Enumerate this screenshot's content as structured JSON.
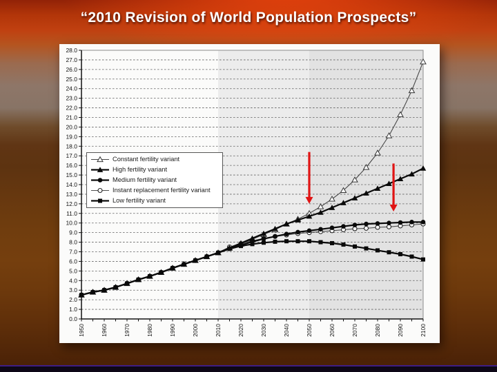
{
  "slide": {
    "title": "“2010 Revision of World Population Prospects”"
  },
  "chart_data": {
    "type": "line",
    "title": "",
    "xlabel": "",
    "ylabel": "",
    "xlim": [
      1950,
      2100
    ],
    "ylim": [
      0,
      28
    ],
    "yticks": {
      "min": 0,
      "max": 28,
      "step": 1,
      "decimals": 1
    },
    "xticks": {
      "minor_step": 5,
      "label_step": 10,
      "labeled_years": [
        1950,
        1960,
        1970,
        1980,
        1990,
        2000,
        2010,
        2020,
        2030,
        2040,
        2050,
        2060,
        2070,
        2080,
        2090,
        2100
      ]
    },
    "grid": "horizontal-dashed",
    "legend_position": "upper-left-inside",
    "x": [
      1950,
      1955,
      1960,
      1965,
      1970,
      1975,
      1980,
      1985,
      1990,
      1995,
      2000,
      2005,
      2010,
      2015,
      2020,
      2025,
      2030,
      2035,
      2040,
      2045,
      2050,
      2055,
      2060,
      2065,
      2070,
      2075,
      2080,
      2085,
      2090,
      2095,
      2100
    ],
    "series": [
      {
        "name": "Constant fertility variant",
        "marker": "triangle-open",
        "line": "thin",
        "color": "#474747",
        "values": [
          2.5,
          2.8,
          3.0,
          3.3,
          3.7,
          4.1,
          4.45,
          4.85,
          5.3,
          5.7,
          6.1,
          6.5,
          6.9,
          7.4,
          7.8,
          8.3,
          8.8,
          9.3,
          9.9,
          10.4,
          11.0,
          11.7,
          12.5,
          13.4,
          14.5,
          15.8,
          17.3,
          19.1,
          21.3,
          23.8,
          26.8
        ]
      },
      {
        "name": "High fertility variant",
        "marker": "triangle-filled",
        "line": "thick",
        "color": "#0a0a0a",
        "values": [
          2.5,
          2.8,
          3.0,
          3.3,
          3.7,
          4.1,
          4.45,
          4.85,
          5.3,
          5.7,
          6.1,
          6.5,
          6.9,
          7.4,
          7.9,
          8.4,
          8.9,
          9.4,
          9.9,
          10.3,
          10.7,
          11.1,
          11.6,
          12.1,
          12.6,
          13.1,
          13.6,
          14.1,
          14.6,
          15.1,
          15.7
        ]
      },
      {
        "name": "Medium fertility variant",
        "marker": "circle-filled",
        "line": "thick",
        "color": "#0a0a0a",
        "values": [
          2.5,
          2.8,
          3.0,
          3.3,
          3.7,
          4.1,
          4.45,
          4.85,
          5.3,
          5.7,
          6.1,
          6.5,
          6.9,
          7.35,
          7.7,
          8.05,
          8.35,
          8.6,
          8.85,
          9.05,
          9.2,
          9.35,
          9.5,
          9.65,
          9.8,
          9.9,
          9.95,
          10.0,
          10.05,
          10.1,
          10.1
        ]
      },
      {
        "name": "Instant replacement fertility variant",
        "marker": "circle-open",
        "line": "thin",
        "color": "#4d4d4d",
        "values": [
          2.5,
          2.8,
          3.0,
          3.3,
          3.7,
          4.1,
          4.45,
          4.85,
          5.3,
          5.7,
          6.1,
          6.5,
          6.9,
          7.5,
          7.85,
          8.15,
          8.4,
          8.6,
          8.75,
          8.9,
          9.0,
          9.1,
          9.2,
          9.3,
          9.4,
          9.45,
          9.55,
          9.6,
          9.7,
          9.8,
          9.9
        ]
      },
      {
        "name": "Low fertility variant",
        "marker": "square-filled",
        "line": "thick",
        "color": "#0a0a0a",
        "values": [
          2.5,
          2.8,
          3.0,
          3.3,
          3.7,
          4.1,
          4.45,
          4.85,
          5.3,
          5.7,
          6.1,
          6.5,
          6.9,
          7.3,
          7.6,
          7.8,
          7.95,
          8.05,
          8.1,
          8.1,
          8.1,
          8.0,
          7.9,
          7.75,
          7.55,
          7.35,
          7.15,
          6.95,
          6.75,
          6.5,
          6.2
        ]
      }
    ],
    "shaded_regions": [
      {
        "from": 2010,
        "to": 2050,
        "color": "#ececec"
      },
      {
        "from": 2050,
        "to": 2100,
        "color": "#e2e2e2"
      }
    ],
    "annotations": {
      "arrow_color": "#e01414",
      "arrows": [
        {
          "x_year": 2050,
          "y_from": 17.4,
          "y_to": 12.0
        },
        {
          "x_year": 2087,
          "y_from": 16.2,
          "y_to": 11.2
        }
      ]
    }
  }
}
